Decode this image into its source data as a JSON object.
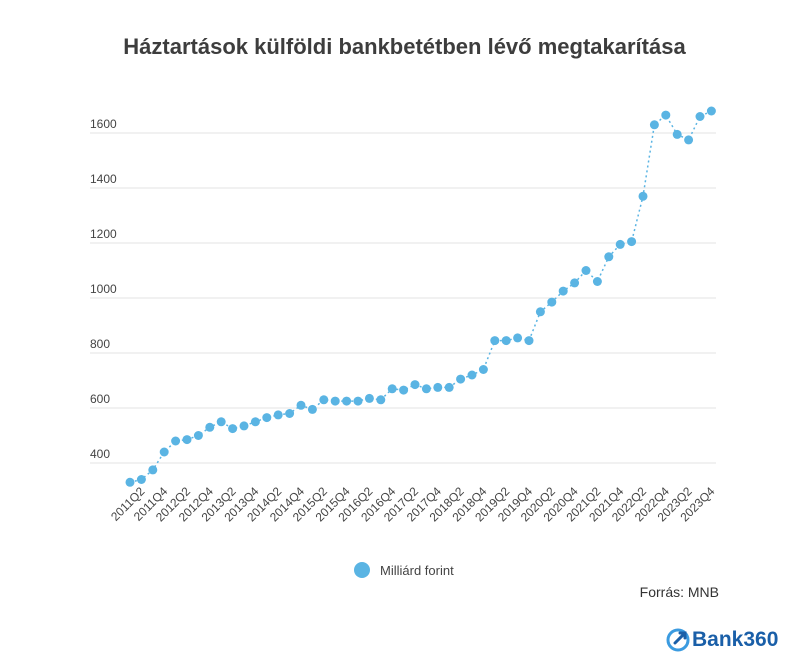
{
  "title": "Háztartások külföldi bankbetétben lévő megtakarítása",
  "legend": {
    "label": "Milliárd forint"
  },
  "source": "Forrás: MNB",
  "logo": {
    "text": "Bank360"
  },
  "colors": {
    "series": "#5ab4e3",
    "grid": "#e3e3e3",
    "text": "#444444"
  },
  "chart_data": {
    "type": "line",
    "title": "Háztartások külföldi bankbetétben lévő megtakarítása",
    "xlabel": "",
    "ylabel": "",
    "ylim": [
      300,
      1700
    ],
    "yticks": [
      400,
      600,
      800,
      1000,
      1200,
      1400,
      1600
    ],
    "grid": true,
    "legend_position": "bottom",
    "categories": [
      "2011Q1",
      "2011Q2",
      "2011Q3",
      "2011Q4",
      "2012Q1",
      "2012Q2",
      "2012Q3",
      "2012Q4",
      "2013Q1",
      "2013Q2",
      "2013Q3",
      "2013Q4",
      "2014Q1",
      "2014Q2",
      "2014Q3",
      "2014Q4",
      "2015Q1",
      "2015Q2",
      "2015Q3",
      "2015Q4",
      "2016Q1",
      "2016Q2",
      "2016Q3",
      "2016Q4",
      "2017Q1",
      "2017Q2",
      "2017Q3",
      "2017Q4",
      "2018Q1",
      "2018Q2",
      "2018Q3",
      "2018Q4",
      "2019Q1",
      "2019Q2",
      "2019Q3",
      "2019Q4",
      "2020Q1",
      "2020Q2",
      "2020Q3",
      "2020Q4",
      "2021Q1",
      "2021Q2",
      "2021Q3",
      "2021Q4",
      "2022Q1",
      "2022Q2",
      "2022Q3",
      "2022Q4",
      "2023Q1",
      "2023Q2",
      "2023Q3",
      "2023Q4"
    ],
    "tick_labels": [
      "2011Q2",
      "2011Q4",
      "2012Q2",
      "2012Q4",
      "2013Q2",
      "2013Q4",
      "2014Q2",
      "2014Q4",
      "2015Q2",
      "2015Q4",
      "2016Q2",
      "2016Q4",
      "2017Q2",
      "2017Q4",
      "2018Q2",
      "2018Q4",
      "2019Q2",
      "2019Q4",
      "2020Q2",
      "2020Q4",
      "2021Q2",
      "2021Q4",
      "2022Q2",
      "2022Q4",
      "2023Q2",
      "2023Q4"
    ],
    "series": [
      {
        "name": "Milliárd forint",
        "values": [
          330,
          340,
          375,
          440,
          480,
          485,
          500,
          530,
          550,
          525,
          535,
          550,
          565,
          575,
          580,
          610,
          595,
          630,
          625,
          625,
          625,
          635,
          630,
          670,
          665,
          685,
          670,
          675,
          675,
          705,
          720,
          740,
          845,
          845,
          855,
          845,
          950,
          985,
          1025,
          1055,
          1100,
          1060,
          1150,
          1195,
          1205,
          1370,
          1630,
          1665,
          1595,
          1575,
          1660,
          1680
        ]
      }
    ]
  }
}
